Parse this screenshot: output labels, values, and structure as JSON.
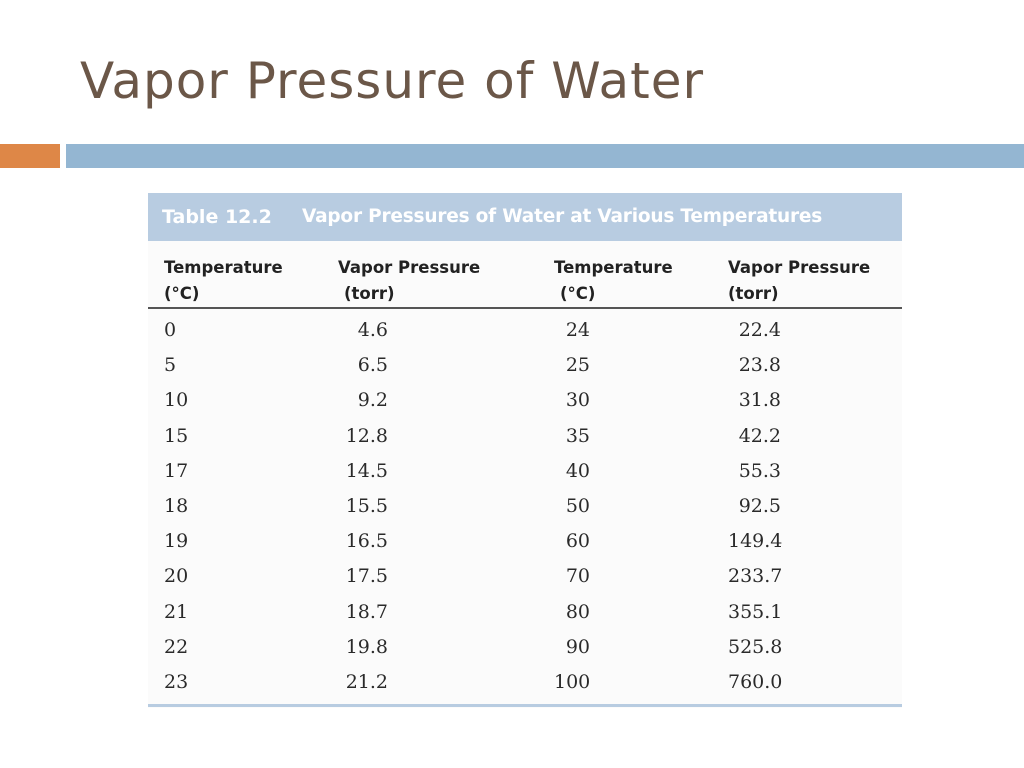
{
  "slide": {
    "title": "Vapor Pressure of Water",
    "accent_colors": {
      "orange": "#de8747",
      "blue": "#94b6d2"
    }
  },
  "table": {
    "caption_number": "Table 12.2",
    "caption_text": "Vapor Pressures of Water at Various Temperatures",
    "caption_color": "#b8cce1",
    "headers": [
      {
        "line1": "Temperature",
        "line2": "(°C)"
      },
      {
        "line1": "Vapor Pressure",
        "line2": "(torr)"
      },
      {
        "line1": "Temperature",
        "line2": "(°C)"
      },
      {
        "line1": "Vapor Pressure",
        "line2": "(torr)"
      }
    ],
    "columns": [
      [
        "0",
        "5",
        "10",
        "15",
        "17",
        "18",
        "19",
        "20",
        "21",
        "22",
        "23"
      ],
      [
        "4.6",
        "6.5",
        "9.2",
        "12.8",
        "14.5",
        "15.5",
        "16.5",
        "17.5",
        "18.7",
        "19.8",
        "21.2"
      ],
      [
        "24",
        "25",
        "30",
        "35",
        "40",
        "50",
        "60",
        "70",
        "80",
        "90",
        "100"
      ],
      [
        "22.4",
        "23.8",
        "31.8",
        "42.2",
        "55.3",
        "92.5",
        "149.4",
        "233.7",
        "355.1",
        "525.8",
        "760.0"
      ]
    ]
  }
}
